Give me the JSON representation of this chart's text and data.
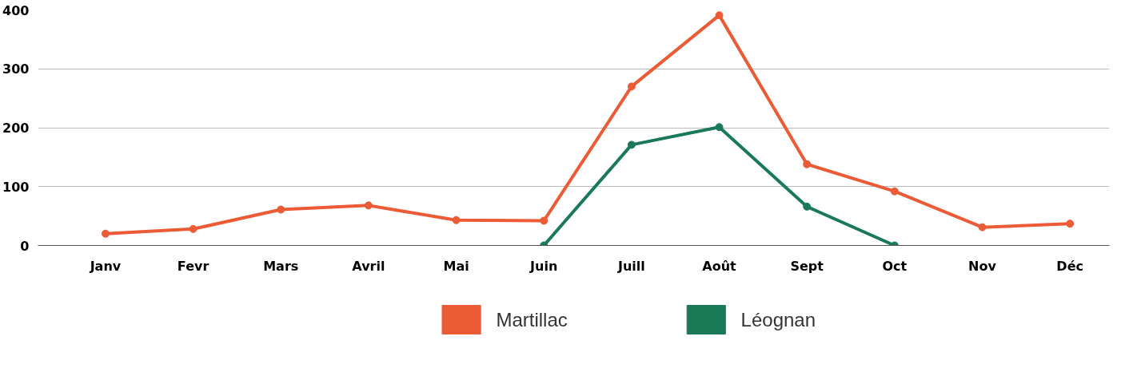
{
  "chart_data": {
    "type": "line",
    "categories": [
      "Janv",
      "Fevr",
      "Mars",
      "Avril",
      "Mai",
      "Juin",
      "Juill",
      "Août",
      "Sept",
      "Oct",
      "Nov",
      "Déc"
    ],
    "series": [
      {
        "name": "Martillac",
        "color": "#eb5b35",
        "values": [
          20,
          28,
          61,
          68,
          43,
          42,
          270,
          391,
          138,
          92,
          31,
          37
        ]
      },
      {
        "name": "Léognan",
        "color": "#1a7a57",
        "values": [
          null,
          null,
          null,
          null,
          null,
          0,
          171,
          201,
          66,
          0,
          null,
          null
        ]
      }
    ],
    "ylim": [
      0,
      400
    ],
    "yticks": [
      0,
      100,
      200,
      300,
      400
    ],
    "grid": "y",
    "legend": "bottom",
    "marker": "circle",
    "line_style": "solid"
  }
}
